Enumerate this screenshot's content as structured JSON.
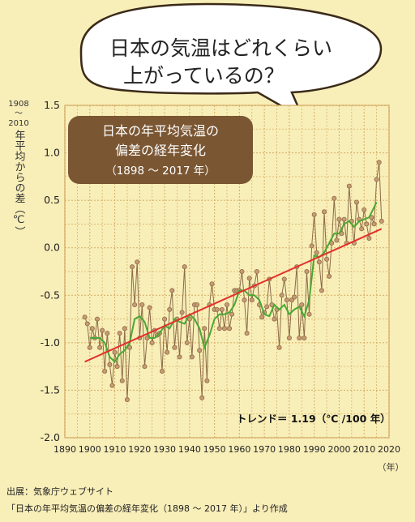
{
  "bubble": {
    "line1": "日本の気温はどれくらい",
    "line2": "上がっているの？"
  },
  "title_box": {
    "line1": "日本の年平均気温の",
    "line2": "偏差の経年変化",
    "line3": "（1898 ～ 2017 年）"
  },
  "y_axis_label": {
    "base_top": "1908",
    "tilde": "～",
    "base_bottom": "2010",
    "text": "年平均からの差（℃）"
  },
  "x_unit": "（年）",
  "trend_label": "トレンド＝ 1.19（℃ /100 年）",
  "source": {
    "line1": "出展：気象庁ウェブサイト",
    "line2": "「日本の年平均気温の偏差の経年変化（1898 ～ 2017 年）」より作成"
  },
  "colors": {
    "background": "#f8eeb8",
    "grid": "#d9b36a",
    "annual": "#8b6b47",
    "annual_marker_fill": "#c89b73",
    "moving_avg": "#4aa832",
    "trend": "#e2312b",
    "title_box": "#7a5632"
  },
  "chart_data": {
    "type": "line",
    "title": "日本の年平均気温の偏差の経年変化（1898 ～ 2017 年）",
    "xlabel": "（年）",
    "ylabel": "1908～2010年平均からの差（℃）",
    "xlim": [
      1890,
      2020
    ],
    "ylim": [
      -2.0,
      1.5
    ],
    "x_ticks": [
      1890,
      1900,
      1910,
      1920,
      1930,
      1940,
      1950,
      1960,
      1970,
      1980,
      1990,
      2000,
      2010,
      2020
    ],
    "y_ticks": [
      1.5,
      1.0,
      0.5,
      0.0,
      -0.5,
      -1.0,
      -1.5,
      -2.0
    ],
    "y_tick_labels": [
      "1.5",
      "1.0",
      "0.5",
      "0.0",
      "-0.5",
      "-1.0",
      "-1.5",
      "-2.0"
    ],
    "grid": true,
    "series": [
      {
        "style": "line-with-markers",
        "x": [
          1898,
          1899,
          1900,
          1901,
          1902,
          1903,
          1904,
          1905,
          1906,
          1907,
          1908,
          1909,
          1910,
          1911,
          1912,
          1913,
          1914,
          1915,
          1916,
          1917,
          1918,
          1919,
          1920,
          1921,
          1922,
          1923,
          1924,
          1925,
          1926,
          1927,
          1928,
          1929,
          1930,
          1931,
          1932,
          1933,
          1934,
          1935,
          1936,
          1937,
          1938,
          1939,
          1940,
          1941,
          1942,
          1943,
          1944,
          1945,
          1946,
          1947,
          1948,
          1949,
          1950,
          1951,
          1952,
          1953,
          1954,
          1955,
          1956,
          1957,
          1958,
          1959,
          1960,
          1961,
          1962,
          1963,
          1964,
          1965,
          1966,
          1967,
          1968,
          1969,
          1970,
          1971,
          1972,
          1973,
          1974,
          1975,
          1976,
          1977,
          1978,
          1979,
          1980,
          1981,
          1982,
          1983,
          1984,
          1985,
          1986,
          1987,
          1988,
          1989,
          1990,
          1991,
          1992,
          1993,
          1994,
          1995,
          1996,
          1997,
          1998,
          1999,
          2000,
          2001,
          2002,
          2003,
          2004,
          2005,
          2006,
          2007,
          2008,
          2009,
          2010,
          2011,
          2012,
          2013,
          2014,
          2015,
          2016,
          2017
        ],
        "values": [
          -0.73,
          -0.8,
          -1.05,
          -0.85,
          -0.95,
          -0.75,
          -1.05,
          -0.87,
          -1.3,
          -0.9,
          -1.23,
          -1.45,
          -1.1,
          -1.25,
          -0.9,
          -1.4,
          -0.85,
          -1.6,
          -1.05,
          -0.2,
          -0.6,
          -0.15,
          -0.95,
          -0.6,
          -1.25,
          -0.95,
          -0.63,
          -1.0,
          -0.87,
          -0.92,
          -0.9,
          -1.3,
          -0.75,
          -1.1,
          -0.65,
          -0.45,
          -1.05,
          -0.75,
          -1.15,
          -0.68,
          -0.2,
          -1.0,
          -0.75,
          -1.15,
          -0.6,
          -0.6,
          -1.08,
          -1.58,
          -0.85,
          -1.4,
          -0.6,
          -0.38,
          -0.65,
          -0.65,
          -0.85,
          -0.65,
          -0.85,
          -0.6,
          -0.85,
          -0.7,
          -0.45,
          -0.45,
          -0.45,
          -0.25,
          -0.55,
          -0.9,
          -0.32,
          -0.55,
          -0.4,
          -0.25,
          -0.6,
          -0.73,
          -0.68,
          -0.62,
          -0.33,
          -0.6,
          -0.75,
          -0.65,
          -1.05,
          -0.5,
          -0.33,
          -0.55,
          -0.95,
          -0.55,
          -0.52,
          -0.2,
          -0.95,
          -0.6,
          -0.95,
          -0.25,
          -0.7,
          0.02,
          0.35,
          -0.05,
          -0.15,
          -0.45,
          0.38,
          -0.12,
          -0.3,
          0.05,
          0.52,
          0.08,
          0.3,
          0.15,
          0.3,
          0.05,
          0.65,
          0.28,
          0.05,
          0.48,
          0.3,
          0.2,
          0.4,
          0.25,
          0.1,
          0.32,
          0.25,
          0.72,
          0.9,
          0.28
        ]
      },
      {
        "style": "line",
        "x": [
          1900,
          1902,
          1904,
          1906,
          1908,
          1910,
          1912,
          1914,
          1916,
          1918,
          1920,
          1922,
          1924,
          1926,
          1928,
          1930,
          1932,
          1934,
          1936,
          1938,
          1940,
          1942,
          1944,
          1946,
          1948,
          1950,
          1952,
          1954,
          1956,
          1958,
          1960,
          1962,
          1964,
          1966,
          1968,
          1970,
          1972,
          1974,
          1976,
          1978,
          1980,
          1982,
          1984,
          1986,
          1988,
          1990,
          1992,
          1994,
          1996,
          1998,
          2000,
          2002,
          2004,
          2006,
          2008,
          2010,
          2012,
          2015
        ],
        "values": [
          -0.95,
          -0.95,
          -0.95,
          -1.0,
          -1.15,
          -1.2,
          -1.12,
          -1.08,
          -1.0,
          -0.75,
          -0.72,
          -0.78,
          -0.95,
          -0.95,
          -0.9,
          -0.82,
          -0.85,
          -0.75,
          -0.78,
          -0.8,
          -0.7,
          -0.75,
          -0.85,
          -1.05,
          -0.92,
          -0.75,
          -0.7,
          -0.7,
          -0.68,
          -0.6,
          -0.45,
          -0.45,
          -0.5,
          -0.5,
          -0.55,
          -0.7,
          -0.72,
          -0.6,
          -0.65,
          -0.6,
          -0.7,
          -0.65,
          -0.62,
          -0.72,
          -0.55,
          -0.08,
          -0.1,
          -0.05,
          0.05,
          0.15,
          0.15,
          0.25,
          0.28,
          0.22,
          0.28,
          0.3,
          0.32,
          0.48
        ]
      },
      {
        "style": "trend",
        "x": [
          1898,
          2017
        ],
        "values": [
          -1.2,
          0.2
        ]
      }
    ]
  }
}
